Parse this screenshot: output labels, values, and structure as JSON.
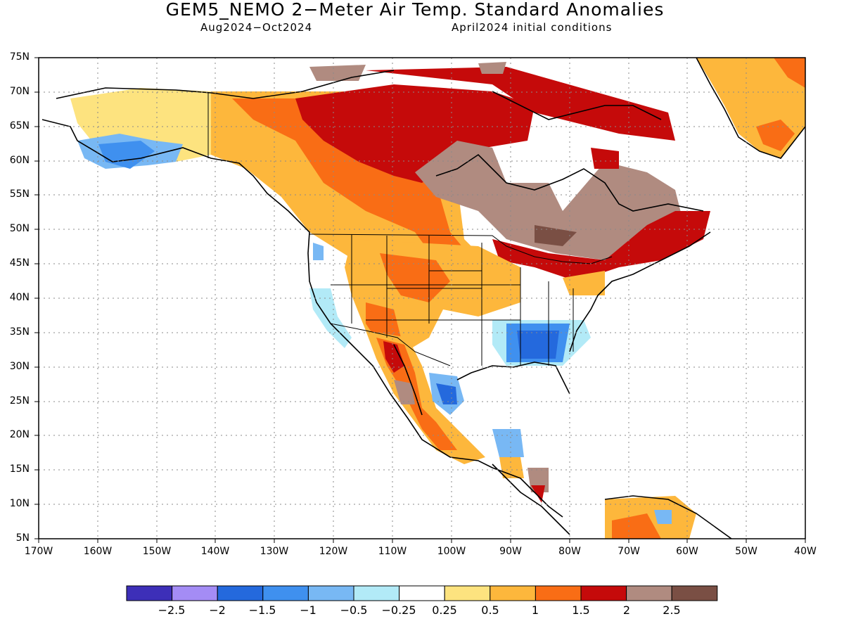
{
  "title": "GEM5_NEMO 2−Meter Air Temp. Standard Anomalies",
  "subtitle_left": "Aug2024−Oct2024",
  "subtitle_right": "April2024 initial conditions",
  "lat_labels": [
    "75N",
    "70N",
    "65N",
    "60N",
    "55N",
    "50N",
    "45N",
    "40N",
    "35N",
    "30N",
    "25N",
    "20N",
    "15N",
    "10N",
    "5N"
  ],
  "lon_labels": [
    "170W",
    "160W",
    "150W",
    "140W",
    "130W",
    "120W",
    "110W",
    "100W",
    "90W",
    "80W",
    "70W",
    "60W",
    "50W",
    "40W"
  ],
  "colorbar": {
    "colors": [
      "#3d2fb8",
      "#a48cf5",
      "#2469dd",
      "#3f90ef",
      "#78b8f4",
      "#b2eaf7",
      "#ffffff",
      "#fde37f",
      "#fdb73c",
      "#f96d15",
      "#c50a0a",
      "#b08b80",
      "#7a4f44"
    ],
    "ticks": [
      "−2.5",
      "−2",
      "−1.5",
      "−1",
      "−0.5",
      "−0.25",
      "0.25",
      "0.5",
      "1",
      "1.5",
      "2",
      "2.5"
    ]
  }
}
